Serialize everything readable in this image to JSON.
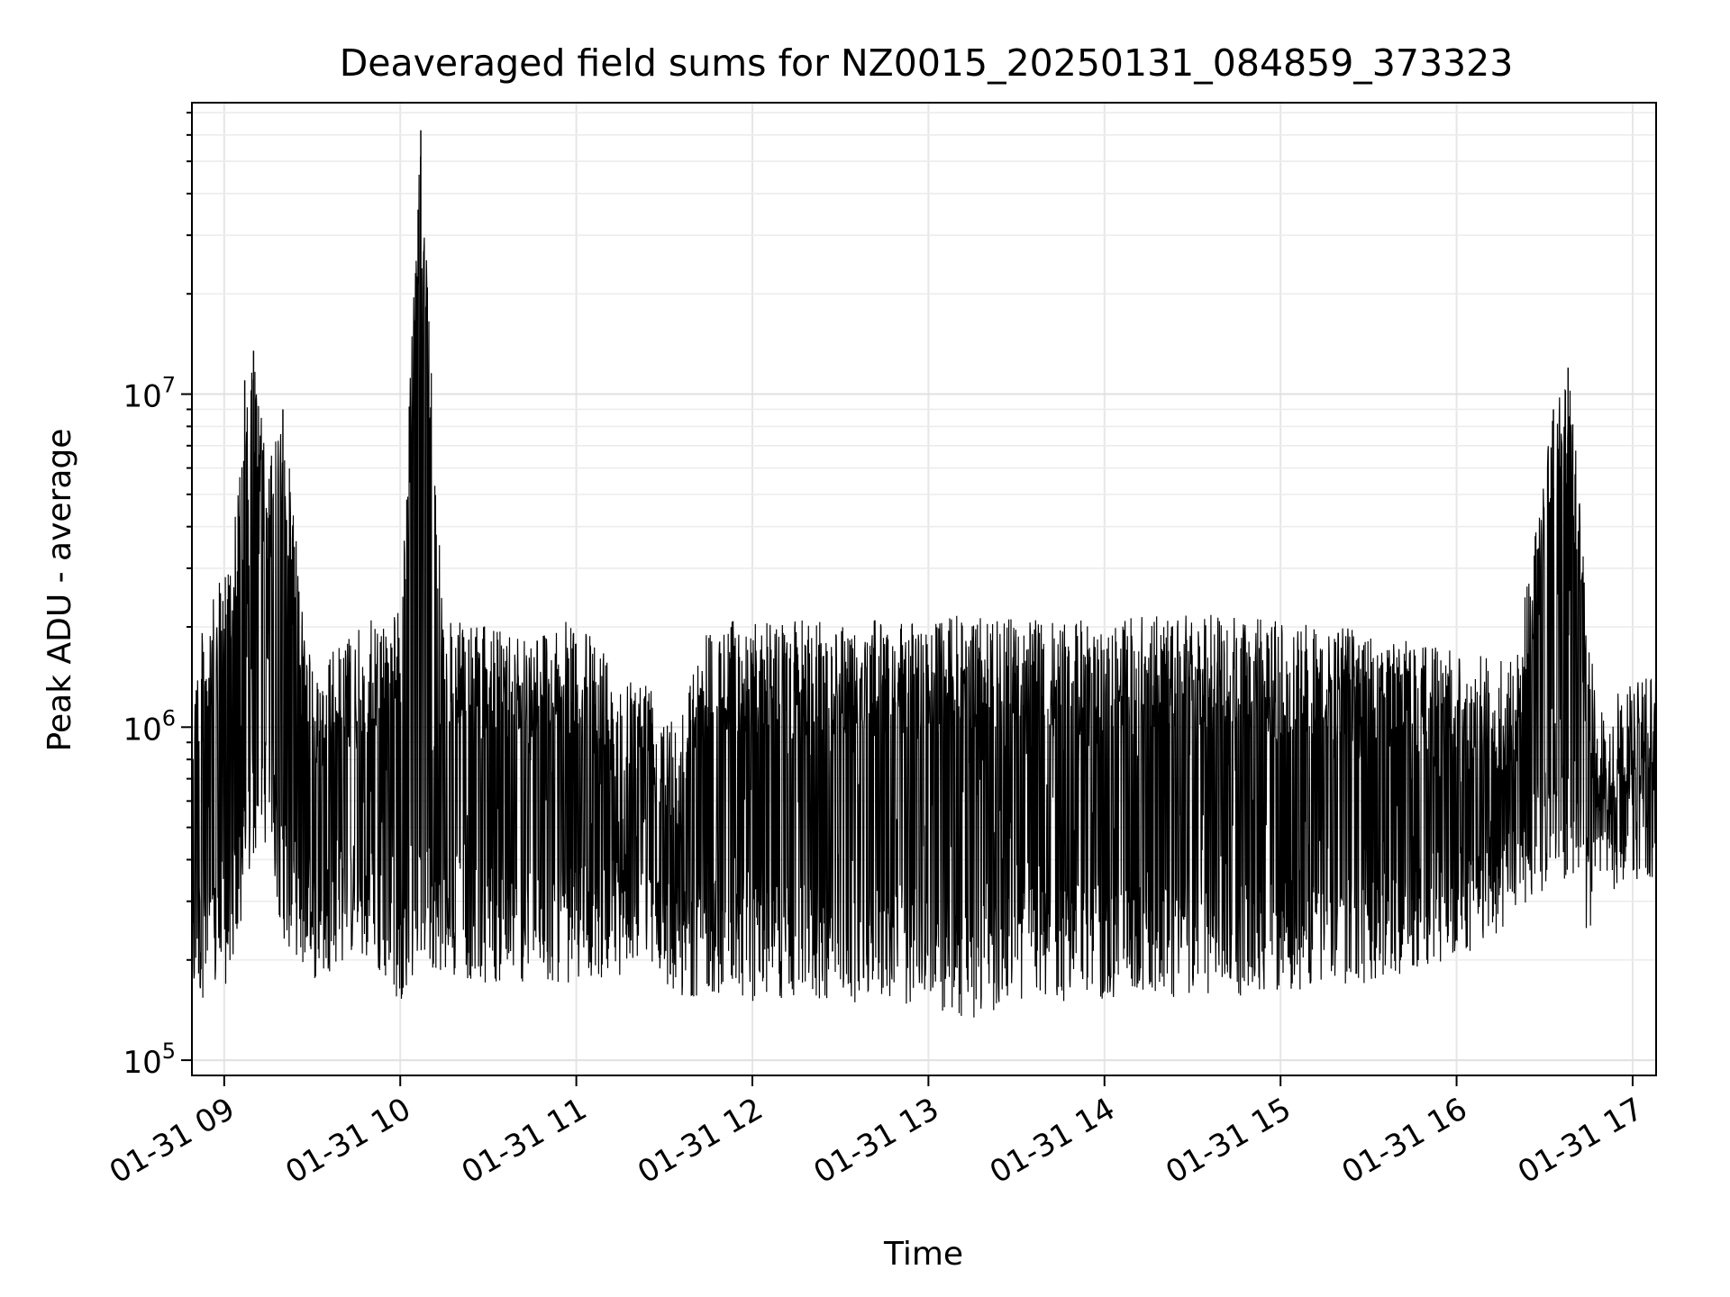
{
  "chart_data": {
    "type": "line",
    "title": "Deaveraged field sums for NZ0015_20250131_084859_373323",
    "xlabel": "Time",
    "ylabel": "Peak ADU - average",
    "yscale": "log",
    "ylim": [
      90000,
      75000000
    ],
    "xlim": [
      "2025-01-31 08:49",
      "2025-01-31 17:08"
    ],
    "grid": true,
    "line_color": "#000000",
    "x_ticks": [
      {
        "value": "2025-01-31 09:00",
        "label": "01-31 09"
      },
      {
        "value": "2025-01-31 10:00",
        "label": "01-31 10"
      },
      {
        "value": "2025-01-31 11:00",
        "label": "01-31 11"
      },
      {
        "value": "2025-01-31 12:00",
        "label": "01-31 12"
      },
      {
        "value": "2025-01-31 13:00",
        "label": "01-31 13"
      },
      {
        "value": "2025-01-31 14:00",
        "label": "01-31 14"
      },
      {
        "value": "2025-01-31 15:00",
        "label": "01-31 15"
      },
      {
        "value": "2025-01-31 16:00",
        "label": "01-31 16"
      },
      {
        "value": "2025-01-31 17:00",
        "label": "01-31 17"
      }
    ],
    "y_ticks": [
      {
        "value": 100000,
        "base": "10",
        "exp": "5"
      },
      {
        "value": 1000000,
        "base": "10",
        "exp": "6"
      },
      {
        "value": 10000000,
        "base": "10",
        "exp": "7"
      }
    ],
    "series": [
      {
        "envelope": true,
        "x": [
          "2025-01-31 08:49",
          "2025-01-31 09:00",
          "2025-01-31 09:05",
          "2025-01-31 09:10",
          "2025-01-31 09:15",
          "2025-01-31 09:20",
          "2025-01-31 09:30",
          "2025-01-31 09:45",
          "2025-01-31 10:00",
          "2025-01-31 10:07",
          "2025-01-31 10:15",
          "2025-01-31 10:30",
          "2025-01-31 10:45",
          "2025-01-31 11:00",
          "2025-01-31 11:15",
          "2025-01-31 11:25",
          "2025-01-31 11:35",
          "2025-01-31 11:45",
          "2025-01-31 12:00",
          "2025-01-31 12:30",
          "2025-01-31 13:00",
          "2025-01-31 13:15",
          "2025-01-31 13:30",
          "2025-01-31 14:00",
          "2025-01-31 14:30",
          "2025-01-31 15:00",
          "2025-01-31 15:30",
          "2025-01-31 16:00",
          "2025-01-31 16:20",
          "2025-01-31 16:33",
          "2025-01-31 16:38",
          "2025-01-31 16:42",
          "2025-01-31 16:45",
          "2025-01-31 16:48",
          "2025-01-31 16:52",
          "2025-01-31 17:00",
          "2025-01-31 17:08"
        ],
        "upper": [
          1600000,
          3000000,
          5500000,
          13500000,
          6000000,
          9000000,
          1500000,
          2000000,
          2300000,
          62000000,
          2100000,
          2000000,
          2000000,
          2100000,
          1500000,
          1400000,
          1100000,
          2100000,
          2100000,
          2100000,
          2100000,
          2200000,
          2100000,
          2100000,
          2200000,
          2100000,
          2000000,
          1700000,
          1600000,
          9000000,
          12000000,
          5000000,
          2000000,
          1200000,
          1200000,
          1400000,
          1400000
        ],
        "lower": [
          150000,
          160000,
          220000,
          400000,
          450000,
          230000,
          170000,
          210000,
          150000,
          200000,
          180000,
          170000,
          170000,
          170000,
          180000,
          200000,
          150000,
          160000,
          150000,
          150000,
          145000,
          130000,
          150000,
          150000,
          150000,
          160000,
          170000,
          200000,
          250000,
          350000,
          350000,
          380000,
          200000,
          330000,
          320000,
          330000,
          360000
        ]
      }
    ]
  }
}
